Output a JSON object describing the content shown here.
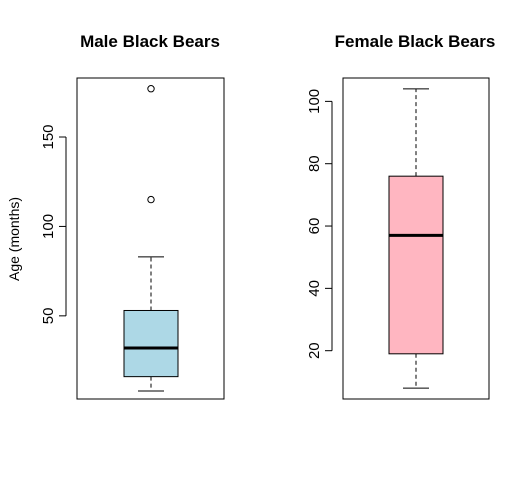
{
  "chart_data": [
    {
      "type": "box",
      "title": "Male Black Bears",
      "ylabel": "Age (months)",
      "xlabel": "",
      "ylim": [
        3.5,
        183
      ],
      "yticks": [
        50,
        100,
        150
      ],
      "fill": "#add8e6",
      "box": {
        "min": 8,
        "q1": 16,
        "median": 32,
        "q3": 53,
        "max": 83
      },
      "outliers": [
        115,
        177
      ]
    },
    {
      "type": "box",
      "title": "Female Black Bears",
      "ylabel": "",
      "xlabel": "",
      "ylim": [
        4.5,
        107.5
      ],
      "yticks": [
        20,
        40,
        60,
        80,
        100
      ],
      "fill": "#ffb6c1",
      "box": {
        "min": 8,
        "q1": 19,
        "median": 57,
        "q3": 76,
        "max": 104
      },
      "outliers": []
    }
  ]
}
